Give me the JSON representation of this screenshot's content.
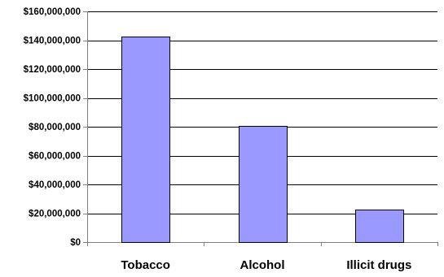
{
  "chart_data": {
    "type": "bar",
    "categories": [
      "Tobacco",
      "Alcohol",
      "Illicit drugs"
    ],
    "values": [
      142500000,
      80500000,
      22500000
    ],
    "ylim": [
      0,
      160000000
    ],
    "yticks": [
      0,
      20000000,
      40000000,
      60000000,
      80000000,
      100000000,
      120000000,
      140000000,
      160000000
    ],
    "ytick_labels": [
      "$0",
      "$20,000,000",
      "$40,000,000",
      "$60,000,000",
      "$80,000,000",
      "$100,000,000",
      "$120,000,000",
      "$140,000,000",
      "$160,000,000"
    ],
    "grid": true,
    "legend": "none",
    "colors": {
      "bar_fill": "#9999FF",
      "bar_stroke": "#000000",
      "grid": "#000000",
      "axis": "#808080"
    }
  }
}
